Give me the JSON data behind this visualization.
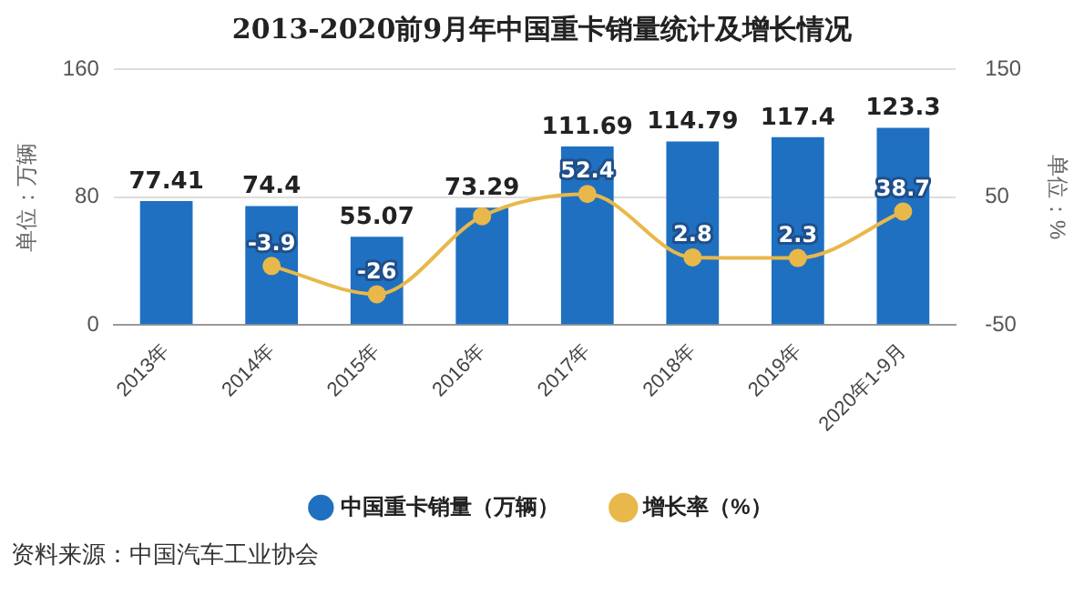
{
  "chart_data": {
    "type": "bar",
    "title": "2013-2020前9月年中国重卡销量统计及增长情况",
    "ylabel": "单位：万辆",
    "y2label": "单位：%",
    "categories": [
      "2013年",
      "2014年",
      "2015年",
      "2016年",
      "2017年",
      "2018年",
      "2019年",
      "2020年1-9月"
    ],
    "series": [
      {
        "name": "中国重卡销量（万辆）",
        "color": "#1f70c1",
        "values": [
          77.41,
          74.4,
          55.07,
          73.29,
          111.69,
          114.79,
          117.4,
          123.3
        ],
        "value_labels": [
          "77.41",
          "74.4",
          "55.07",
          "73.29",
          "111.69",
          "114.79",
          "117.4",
          "123.3"
        ]
      },
      {
        "name": "增长率（%）",
        "type": "line",
        "axis": "y2",
        "color": "#e8b84a",
        "values": [
          null,
          -3.9,
          -26,
          35,
          52.4,
          2.8,
          2.3,
          38.7
        ],
        "value_labels": [
          null,
          "-3.9",
          "-26",
          null,
          "52.4",
          "2.8",
          "2.3",
          "38.7"
        ]
      }
    ],
    "ylim": [
      0,
      160
    ],
    "yticks": [
      0,
      80,
      160
    ],
    "y2lim": [
      -50,
      150
    ],
    "y2ticks": [
      -50,
      50,
      150
    ],
    "grid": "y",
    "legend": "bottom",
    "marker": "circle",
    "line_style": "solid",
    "annotations": [
      "资料来源：中国汽车工业协会"
    ]
  }
}
